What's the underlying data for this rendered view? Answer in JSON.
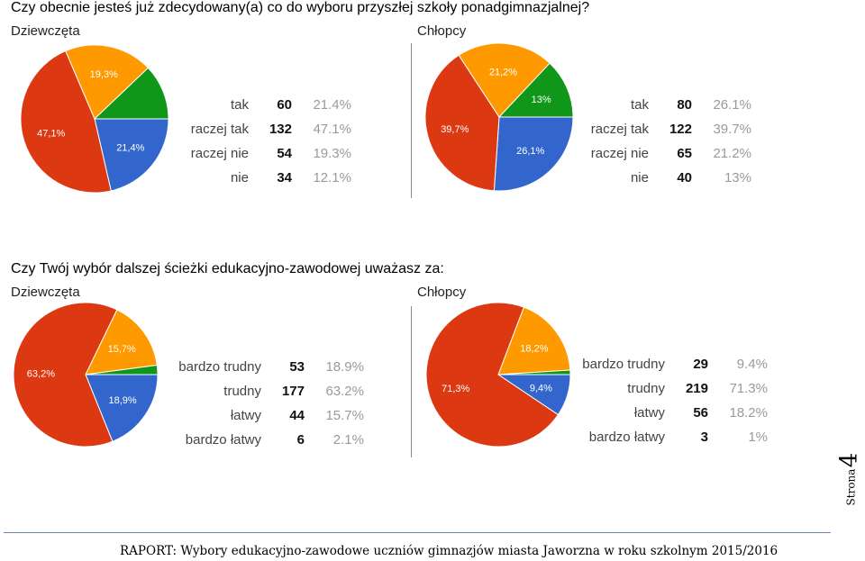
{
  "q1": {
    "title": "Czy obecnie jesteś już zdecydowany(a) co do wyboru przyszłej szkoły ponadgimnazjalnej?",
    "girls": {
      "label": "Dziewczęta",
      "rows": [
        {
          "label": "tak",
          "count": "60",
          "pct": "21.4%"
        },
        {
          "label": "raczej tak",
          "count": "132",
          "pct": "47.1%"
        },
        {
          "label": "raczej nie",
          "count": "54",
          "pct": "19.3%"
        },
        {
          "label": "nie",
          "count": "34",
          "pct": "12.1%"
        }
      ]
    },
    "boys": {
      "label": "Chłopcy",
      "rows": [
        {
          "label": "tak",
          "count": "80",
          "pct": "26.1%"
        },
        {
          "label": "raczej tak",
          "count": "122",
          "pct": "39.7%"
        },
        {
          "label": "raczej nie",
          "count": "65",
          "pct": "21.2%"
        },
        {
          "label": "nie",
          "count": "40",
          "pct": "13%"
        }
      ]
    }
  },
  "q2": {
    "title": "Czy Twój wybór dalszej ścieżki edukacyjno-zawodowej uważasz za:",
    "girls": {
      "label": "Dziewczęta",
      "rows": [
        {
          "label": "bardzo trudny",
          "count": "53",
          "pct": "18.9%"
        },
        {
          "label": "trudny",
          "count": "177",
          "pct": "63.2%"
        },
        {
          "label": "łatwy",
          "count": "44",
          "pct": "15.7%"
        },
        {
          "label": "bardzo łatwy",
          "count": "6",
          "pct": "2.1%"
        }
      ]
    },
    "boys": {
      "label": "Chłopcy",
      "rows": [
        {
          "label": "bardzo trudny",
          "count": "29",
          "pct": "9.4%"
        },
        {
          "label": "trudny",
          "count": "219",
          "pct": "71.3%"
        },
        {
          "label": "łatwy",
          "count": "56",
          "pct": "18.2%"
        },
        {
          "label": "bardzo łatwy",
          "count": "3",
          "pct": "1%"
        }
      ]
    }
  },
  "chart_data": [
    {
      "type": "pie",
      "title": "",
      "categories": [
        "tak",
        "raczej tak",
        "raczej nie",
        "nie"
      ],
      "values": [
        21.4,
        47.1,
        19.3,
        12.1
      ],
      "slice_labels": [
        "21,4%",
        "47,1%",
        "19,3%",
        ""
      ],
      "colors": [
        "#3366cc",
        "#dc3912",
        "#ff9900",
        "#109618"
      ]
    },
    {
      "type": "pie",
      "title": "",
      "categories": [
        "tak",
        "raczej tak",
        "raczej nie",
        "nie"
      ],
      "values": [
        26.1,
        39.7,
        21.2,
        13.0
      ],
      "slice_labels": [
        "26,1%",
        "39,7%",
        "21,2%",
        "13%"
      ],
      "colors": [
        "#3366cc",
        "#dc3912",
        "#ff9900",
        "#109618"
      ]
    },
    {
      "type": "pie",
      "title": "",
      "categories": [
        "bardzo trudny",
        "trudny",
        "łatwy",
        "bardzo łatwy"
      ],
      "values": [
        18.9,
        63.2,
        15.7,
        2.1
      ],
      "slice_labels": [
        "18,9%",
        "63,2%",
        "15,7%",
        ""
      ],
      "colors": [
        "#3366cc",
        "#dc3912",
        "#ff9900",
        "#109618"
      ]
    },
    {
      "type": "pie",
      "title": "",
      "categories": [
        "bardzo trudny",
        "trudny",
        "łatwy",
        "bardzo łatwy"
      ],
      "values": [
        9.4,
        71.3,
        18.2,
        1.0
      ],
      "slice_labels": [
        "9,4%",
        "71,3%",
        "18,2%",
        ""
      ],
      "colors": [
        "#3366cc",
        "#dc3912",
        "#ff9900",
        "#109618"
      ]
    }
  ],
  "footer": {
    "text": "RAPORT: Wybory edukacyjno-zawodowe uczniów gimnazjów miasta Jaworzna w roku szkolnym 2015/2016",
    "page_label": "Strona",
    "page_number": "4"
  }
}
